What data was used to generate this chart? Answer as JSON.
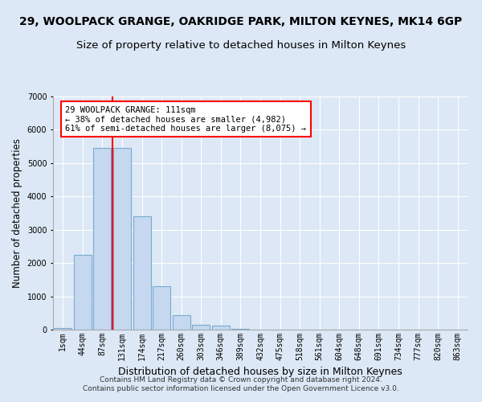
{
  "title": "29, WOOLPACK GRANGE, OAKRIDGE PARK, MILTON KEYNES, MK14 6GP",
  "subtitle": "Size of property relative to detached houses in Milton Keynes",
  "xlabel": "Distribution of detached houses by size in Milton Keynes",
  "ylabel": "Number of detached properties",
  "footer_line1": "Contains HM Land Registry data © Crown copyright and database right 2024.",
  "footer_line2": "Contains public sector information licensed under the Open Government Licence v3.0.",
  "annotation_line1": "29 WOOLPACK GRANGE: 111sqm",
  "annotation_line2": "← 38% of detached houses are smaller (4,982)",
  "annotation_line3": "61% of semi-detached houses are larger (8,075) →",
  "bar_labels": [
    "1sqm",
    "44sqm",
    "87sqm",
    "131sqm",
    "174sqm",
    "217sqm",
    "260sqm",
    "303sqm",
    "346sqm",
    "389sqm",
    "432sqm",
    "475sqm",
    "518sqm",
    "561sqm",
    "604sqm",
    "648sqm",
    "691sqm",
    "734sqm",
    "777sqm",
    "820sqm",
    "863sqm"
  ],
  "bar_values": [
    50,
    2250,
    5450,
    5450,
    3400,
    1300,
    430,
    150,
    120,
    30,
    10,
    5,
    2,
    2,
    1,
    1,
    0,
    0,
    0,
    0,
    0
  ],
  "bar_color": "#c5d8f0",
  "bar_edge_color": "#7aaad0",
  "red_line_x": 2.5,
  "ylim": [
    0,
    7000
  ],
  "yticks": [
    0,
    1000,
    2000,
    3000,
    4000,
    5000,
    6000,
    7000
  ],
  "background_color": "#dce8f5",
  "plot_bg_color": "#dce8f5",
  "grid_color": "#ffffff",
  "title_fontsize": 10,
  "subtitle_fontsize": 9.5,
  "xlabel_fontsize": 9,
  "ylabel_fontsize": 8.5,
  "tick_fontsize": 7,
  "footer_fontsize": 6.5,
  "annotation_fontsize": 7.5
}
